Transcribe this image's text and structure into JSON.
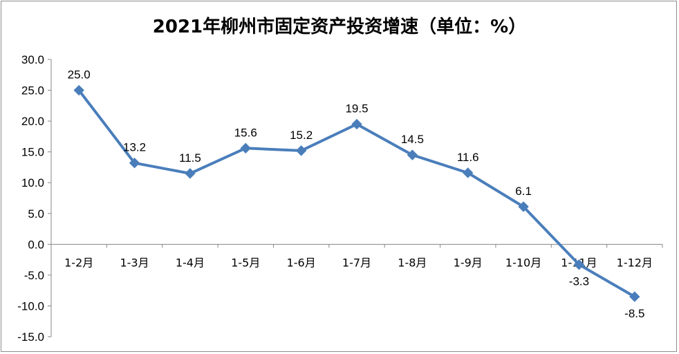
{
  "chart_data": {
    "type": "line",
    "title": "2021年柳州市固定资产投资增速（单位：%）",
    "categories": [
      "1-2月",
      "1-3月",
      "1-4月",
      "1-5月",
      "1-6月",
      "1-7月",
      "1-8月",
      "1-9月",
      "1-10月",
      "1-11月",
      "1-12月"
    ],
    "series": [
      {
        "values": [
          25.0,
          13.2,
          11.5,
          15.6,
          15.2,
          19.5,
          14.5,
          11.6,
          6.1,
          -3.3,
          -8.5
        ]
      }
    ],
    "data_labels": [
      "25.0",
      "13.2",
      "11.5",
      "15.6",
      "15.2",
      "19.5",
      "14.5",
      "11.6",
      "6.1",
      "-3.3",
      "-8.5"
    ],
    "yticks": [
      "30.0",
      "25.0",
      "20.0",
      "15.0",
      "10.0",
      "5.0",
      "0.0",
      "-5.0",
      "-10.0",
      "-15.0"
    ],
    "ylim": [
      -15,
      30
    ],
    "xlabel": "",
    "ylabel": "",
    "grid": false,
    "legend": "none",
    "colors": {
      "line": "#4a7ebb",
      "marker": "#4a7ebb",
      "axis": "#868686"
    }
  }
}
